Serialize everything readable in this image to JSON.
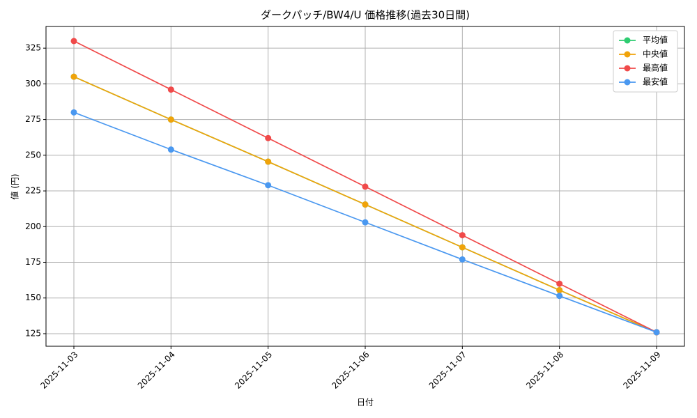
{
  "chart_data": {
    "type": "line",
    "title": "ダークパッチ/BW4/U 価格推移(過去30日間)",
    "x_label": "日付",
    "y_label": "値 (円)",
    "categories": [
      "2025-11-03",
      "2025-11-04",
      "2025-11-05",
      "2025-11-06",
      "2025-11-07",
      "2025-11-08",
      "2025-11-09"
    ],
    "series": [
      {
        "name": "平均値",
        "color": "#2ecc71",
        "values": [
          305,
          275,
          245.5,
          215.5,
          185.5,
          155.5,
          126
        ]
      },
      {
        "name": "中央値",
        "color": "#f0a30a",
        "values": [
          305,
          275,
          245.5,
          215.5,
          185.5,
          155.5,
          126
        ]
      },
      {
        "name": "最高値",
        "color": "#f04a4a",
        "values": [
          330,
          296,
          262,
          228,
          194,
          160,
          126
        ]
      },
      {
        "name": "最安値",
        "color": "#4a98f0",
        "values": [
          280,
          254,
          229,
          203,
          177,
          151.5,
          126
        ]
      }
    ],
    "ylim": [
      116.2,
      340.2
    ],
    "yticks": [
      125,
      150,
      175,
      200,
      225,
      250,
      275,
      300,
      325
    ],
    "grid": true,
    "legend": "upper right"
  }
}
